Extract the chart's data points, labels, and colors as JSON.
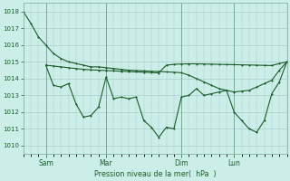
{
  "bg_color": "#cceee8",
  "grid_color": "#aacccc",
  "line_color": "#1a5c2a",
  "day_labels": [
    "Sam",
    "Mar",
    "Dim",
    "Lun"
  ],
  "day_positions": [
    18,
    66,
    126,
    168
  ],
  "xlim": [
    0,
    210
  ],
  "ylim": [
    1009.5,
    1018.5
  ],
  "yticks": [
    1010,
    1011,
    1012,
    1013,
    1014,
    1015,
    1016,
    1017,
    1018
  ],
  "xlabel": "Pression niveau de la mer(  hPa  )",
  "series1_x": [
    0,
    6,
    12,
    18,
    24,
    30,
    36,
    42,
    48,
    54,
    60,
    66,
    72,
    78,
    84,
    90,
    96,
    102,
    108,
    114,
    120,
    126,
    132,
    138,
    144,
    150,
    156,
    162,
    168,
    174,
    180,
    186,
    192,
    198,
    204,
    210
  ],
  "series1_y": [
    1018.0,
    1017.3,
    1016.5,
    1016.0,
    1015.5,
    1015.2,
    1015.0,
    1014.9,
    1014.8,
    1014.7,
    1014.7,
    1014.65,
    1014.6,
    1014.55,
    1014.5,
    1014.48,
    1014.46,
    1014.44,
    1014.42,
    1014.4,
    1014.38,
    1014.35,
    1014.2,
    1014.0,
    1013.8,
    1013.6,
    1013.4,
    1013.3,
    1013.2,
    1013.25,
    1013.3,
    1013.5,
    1013.7,
    1013.9,
    1014.5,
    1015.0
  ],
  "series2_x": [
    18,
    24,
    30,
    36,
    42,
    48,
    54,
    60,
    66,
    72,
    78,
    84,
    90,
    96,
    102,
    108,
    114,
    120,
    126,
    132,
    138,
    144,
    150,
    156,
    162,
    168,
    174,
    180,
    186,
    192,
    198,
    204,
    210
  ],
  "series2_y": [
    1014.8,
    1014.75,
    1014.7,
    1014.65,
    1014.6,
    1014.55,
    1014.52,
    1014.5,
    1014.48,
    1014.46,
    1014.44,
    1014.42,
    1014.4,
    1014.38,
    1014.36,
    1014.34,
    1014.8,
    1014.85,
    1014.87,
    1014.88,
    1014.88,
    1014.87,
    1014.86,
    1014.85,
    1014.84,
    1014.83,
    1014.82,
    1014.81,
    1014.8,
    1014.79,
    1014.78,
    1014.9,
    1015.0
  ],
  "series3_x": [
    18,
    24,
    30,
    36,
    42,
    48,
    54,
    60,
    66,
    72,
    78,
    84,
    90,
    96,
    102,
    108,
    114,
    120,
    126,
    132,
    138,
    144,
    150,
    156,
    162,
    168,
    174,
    180,
    186,
    192,
    198,
    204,
    210
  ],
  "series3_y": [
    1014.8,
    1013.6,
    1013.5,
    1013.7,
    1012.5,
    1011.7,
    1011.8,
    1012.3,
    1014.1,
    1012.8,
    1012.9,
    1012.8,
    1012.9,
    1011.5,
    1011.1,
    1010.5,
    1011.1,
    1011.0,
    1012.9,
    1013.0,
    1013.4,
    1013.0,
    1013.1,
    1013.2,
    1013.3,
    1012.0,
    1011.5,
    1011.0,
    1010.8,
    1011.5,
    1013.1,
    1013.8,
    1015.0
  ]
}
